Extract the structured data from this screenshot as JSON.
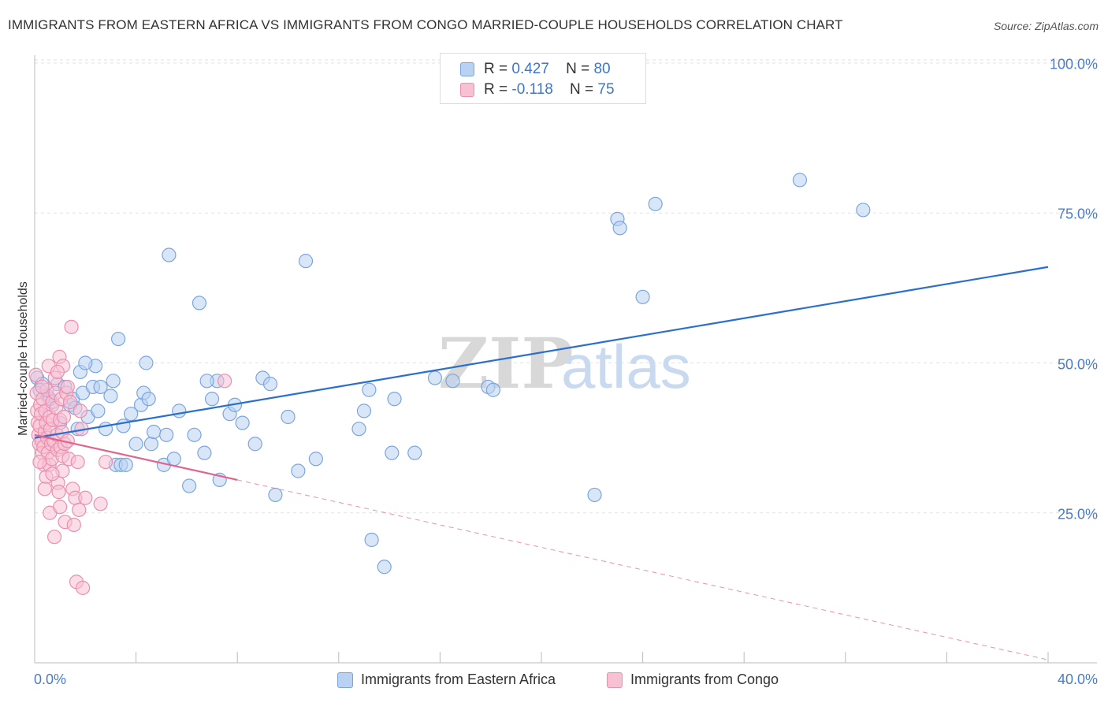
{
  "chart_data": {
    "type": "scatter",
    "title": "IMMIGRANTS FROM EASTERN AFRICA VS IMMIGRANTS FROM CONGO MARRIED-COUPLE HOUSEHOLDS CORRELATION CHART",
    "source": "Source: ZipAtlas.com",
    "xlabel": "",
    "ylabel": "Married-couple Households",
    "xlim": [
      0,
      40
    ],
    "ylim": [
      0,
      100
    ],
    "x_tick_labels": [
      "0.0%",
      "40.0%"
    ],
    "y_ticks": [
      25,
      50,
      75,
      100
    ],
    "y_tick_labels": [
      "25.0%",
      "50.0%",
      "75.0%",
      "100.0%"
    ],
    "watermark": "ZIPatlas",
    "legend_top": [
      {
        "r_label": "R =",
        "r_value": "0.427",
        "n_label": "N =",
        "n_value": "80"
      },
      {
        "r_label": "R =",
        "r_value": "-0.118",
        "n_label": "N =",
        "n_value": "75"
      }
    ],
    "series": [
      {
        "name": "Immigrants from Eastern Africa",
        "color": "#7aa6e0",
        "fill": "#b9d1f2",
        "line_color": "#2a6fcf",
        "trend": {
          "x0": 0,
          "y0": 37.5,
          "x1": 40,
          "y1": 66
        },
        "points": [
          [
            0.1,
            47.5
          ],
          [
            0.3,
            46.5
          ],
          [
            0.5,
            44.5
          ],
          [
            0.7,
            43
          ],
          [
            0.9,
            46.5
          ],
          [
            1.0,
            40
          ],
          [
            1.2,
            46
          ],
          [
            1.4,
            43
          ],
          [
            1.5,
            44
          ],
          [
            1.6,
            42.5
          ],
          [
            1.7,
            39
          ],
          [
            1.8,
            48.5
          ],
          [
            1.9,
            45
          ],
          [
            2.1,
            41
          ],
          [
            2.3,
            46
          ],
          [
            2.4,
            49.5
          ],
          [
            2.5,
            42
          ],
          [
            2.6,
            46
          ],
          [
            2.8,
            39
          ],
          [
            3.0,
            44.5
          ],
          [
            3.1,
            47
          ],
          [
            3.2,
            33
          ],
          [
            3.3,
            54
          ],
          [
            3.4,
            33
          ],
          [
            3.5,
            39.5
          ],
          [
            3.6,
            33
          ],
          [
            3.8,
            41.5
          ],
          [
            4.0,
            36.5
          ],
          [
            4.2,
            43
          ],
          [
            4.3,
            45
          ],
          [
            4.4,
            50
          ],
          [
            4.6,
            36.5
          ],
          [
            4.7,
            38.5
          ],
          [
            5.1,
            33
          ],
          [
            5.2,
            38
          ],
          [
            5.3,
            68
          ],
          [
            5.5,
            34
          ],
          [
            5.7,
            42
          ],
          [
            6.1,
            29.5
          ],
          [
            6.3,
            38
          ],
          [
            6.5,
            60
          ],
          [
            6.7,
            35
          ],
          [
            7.0,
            44
          ],
          [
            7.2,
            47
          ],
          [
            7.3,
            30.5
          ],
          [
            7.7,
            41.5
          ],
          [
            7.9,
            43
          ],
          [
            8.2,
            40
          ],
          [
            8.7,
            36.5
          ],
          [
            9.0,
            47.5
          ],
          [
            9.3,
            46.5
          ],
          [
            9.5,
            28
          ],
          [
            10.0,
            41
          ],
          [
            10.4,
            32
          ],
          [
            10.7,
            67
          ],
          [
            11.1,
            34
          ],
          [
            12.8,
            39
          ],
          [
            13.0,
            42
          ],
          [
            13.2,
            45.5
          ],
          [
            13.3,
            20.5
          ],
          [
            13.8,
            16
          ],
          [
            14.1,
            35
          ],
          [
            14.2,
            44
          ],
          [
            15.0,
            35
          ],
          [
            15.8,
            47.5
          ],
          [
            16.5,
            47
          ],
          [
            17.9,
            46
          ],
          [
            18.1,
            45.5
          ],
          [
            22.1,
            28
          ],
          [
            23.0,
            74
          ],
          [
            23.1,
            72.5
          ],
          [
            24.0,
            61
          ],
          [
            24.5,
            76.5
          ],
          [
            30.2,
            80.5
          ],
          [
            32.7,
            75.5
          ],
          [
            0.2,
            45.5
          ],
          [
            0.6,
            44
          ],
          [
            2.0,
            50
          ],
          [
            4.5,
            44
          ],
          [
            6.8,
            47
          ]
        ]
      },
      {
        "name": "Immigrants from Congo",
        "color": "#eb8fae",
        "fill": "#f7c1d3",
        "line_color": "#e0648f",
        "trend": {
          "x0": 0,
          "y0": 38,
          "x1": 8,
          "y1": 30.5
        },
        "trend_dashed": {
          "x0": 8,
          "y0": 30.5,
          "x1": 40,
          "y1": 0.5
        },
        "points": [
          [
            0.05,
            48
          ],
          [
            0.08,
            45
          ],
          [
            0.1,
            42
          ],
          [
            0.12,
            40
          ],
          [
            0.15,
            38
          ],
          [
            0.18,
            36.5
          ],
          [
            0.2,
            39.5
          ],
          [
            0.22,
            43
          ],
          [
            0.25,
            41.5
          ],
          [
            0.28,
            37
          ],
          [
            0.3,
            35
          ],
          [
            0.32,
            44
          ],
          [
            0.35,
            36
          ],
          [
            0.38,
            33
          ],
          [
            0.4,
            38.5
          ],
          [
            0.42,
            42
          ],
          [
            0.45,
            40
          ],
          [
            0.48,
            45.5
          ],
          [
            0.5,
            37.5
          ],
          [
            0.52,
            35
          ],
          [
            0.55,
            49.5
          ],
          [
            0.58,
            33
          ],
          [
            0.6,
            41
          ],
          [
            0.62,
            39
          ],
          [
            0.65,
            36.5
          ],
          [
            0.68,
            34
          ],
          [
            0.7,
            43.5
          ],
          [
            0.72,
            40.5
          ],
          [
            0.75,
            37
          ],
          [
            0.78,
            21
          ],
          [
            0.8,
            47.5
          ],
          [
            0.82,
            45
          ],
          [
            0.85,
            42.5
          ],
          [
            0.88,
            38
          ],
          [
            0.9,
            35.5
          ],
          [
            0.92,
            30
          ],
          [
            0.95,
            28.5
          ],
          [
            0.98,
            51
          ],
          [
            1.0,
            40.5
          ],
          [
            1.02,
            36
          ],
          [
            1.05,
            44
          ],
          [
            1.08,
            38.5
          ],
          [
            1.1,
            34.5
          ],
          [
            1.12,
            49.5
          ],
          [
            1.15,
            41
          ],
          [
            1.18,
            36.5
          ],
          [
            1.2,
            23.5
          ],
          [
            1.25,
            45
          ],
          [
            1.3,
            37
          ],
          [
            1.35,
            34
          ],
          [
            1.4,
            43.5
          ],
          [
            1.45,
            56
          ],
          [
            1.5,
            29
          ],
          [
            1.55,
            23
          ],
          [
            1.6,
            27.5
          ],
          [
            1.65,
            13.5
          ],
          [
            1.7,
            33.5
          ],
          [
            1.75,
            25.5
          ],
          [
            1.8,
            42
          ],
          [
            1.85,
            39
          ],
          [
            1.9,
            12.5
          ],
          [
            2.0,
            27.5
          ],
          [
            2.6,
            26.5
          ],
          [
            2.8,
            33.5
          ],
          [
            7.5,
            47
          ],
          [
            0.3,
            46
          ],
          [
            0.45,
            31
          ],
          [
            0.6,
            25
          ],
          [
            0.9,
            48.5
          ],
          [
            1.1,
            32
          ],
          [
            1.3,
            46
          ],
          [
            0.2,
            33.5
          ],
          [
            0.4,
            29
          ],
          [
            0.7,
            31.5
          ],
          [
            1.0,
            26
          ]
        ]
      }
    ]
  }
}
